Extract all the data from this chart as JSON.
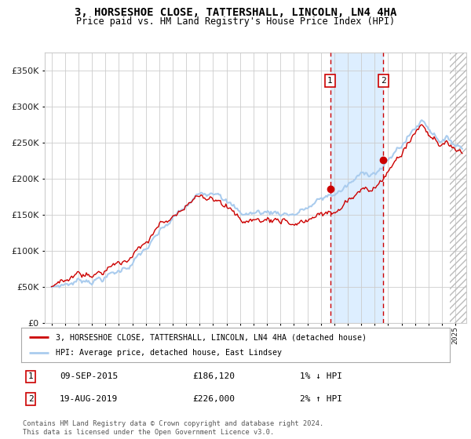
{
  "title": "3, HORSESHOE CLOSE, TATTERSHALL, LINCOLN, LN4 4HA",
  "subtitle": "Price paid vs. HM Land Registry's House Price Index (HPI)",
  "title_fontsize": 10,
  "subtitle_fontsize": 8.5,
  "ytick_values": [
    0,
    50000,
    100000,
    150000,
    200000,
    250000,
    300000,
    350000
  ],
  "ylim": [
    0,
    375000
  ],
  "xlim_start": 1994.5,
  "xlim_end": 2025.8,
  "sale1_date": 2015.69,
  "sale1_price": 186120,
  "sale1_label": "1",
  "sale1_text": "09-SEP-2015",
  "sale1_amount": "£186,120",
  "sale1_hpi": "1% ↓ HPI",
  "sale2_date": 2019.63,
  "sale2_price": 226000,
  "sale2_label": "2",
  "sale2_text": "19-AUG-2019",
  "sale2_amount": "£226,000",
  "sale2_hpi": "2% ↑ HPI",
  "line_color_hpi": "#aaccee",
  "line_color_sale": "#cc0000",
  "dot_color": "#cc0000",
  "shade_color": "#ddeeff",
  "dashed_color": "#cc0000",
  "grid_color": "#cccccc",
  "background_color": "#ffffff",
  "legend_label_sale": "3, HORSESHOE CLOSE, TATTERSHALL, LINCOLN, LN4 4HA (detached house)",
  "legend_label_hpi": "HPI: Average price, detached house, East Lindsey",
  "footnote": "Contains HM Land Registry data © Crown copyright and database right 2024.\nThis data is licensed under the Open Government Licence v3.0.",
  "hatch_start": 2024.58,
  "hatch_color": "#bbbbbb"
}
